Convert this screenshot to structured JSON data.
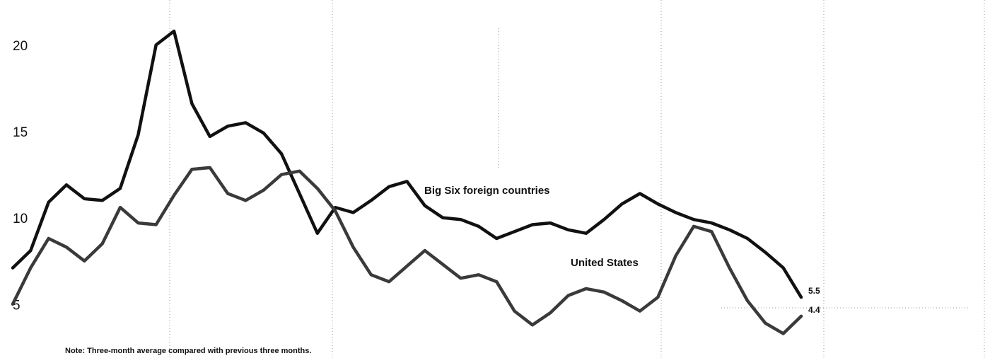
{
  "chart_data": {
    "type": "line",
    "note": "Note: Three-month average compared with previous three months.",
    "categories": [
      null,
      null,
      null,
      null,
      null,
      null,
      null,
      null,
      null,
      null,
      null,
      null,
      null,
      null,
      null,
      null,
      null,
      null,
      null,
      null,
      null,
      null,
      null,
      null,
      null,
      null,
      null,
      null,
      null,
      null,
      null,
      null,
      null,
      null,
      null,
      null,
      null,
      null,
      null,
      null,
      null,
      null,
      null,
      null,
      null
    ],
    "series": [
      {
        "name": "Big Six foreign countries",
        "color": "#111111",
        "values": [
          7.2,
          8.2,
          11.0,
          12.0,
          11.2,
          11.1,
          11.8,
          14.9,
          20.1,
          20.9,
          16.7,
          14.8,
          15.4,
          15.6,
          15.0,
          13.8,
          11.5,
          9.2,
          10.7,
          10.4,
          11.1,
          11.9,
          12.2,
          10.8,
          10.1,
          10.0,
          9.6,
          8.9,
          9.3,
          9.7,
          9.8,
          9.4,
          9.2,
          10.0,
          10.9,
          11.5,
          10.9,
          10.4,
          10.0,
          9.8,
          9.4,
          8.9,
          8.1,
          7.2,
          5.5
        ]
      },
      {
        "name": "United States",
        "color": "#3a3a3a",
        "values": [
          5.1,
          7.2,
          8.9,
          8.4,
          7.6,
          8.6,
          10.7,
          9.8,
          9.7,
          11.4,
          12.9,
          13.0,
          11.5,
          11.1,
          11.7,
          12.6,
          12.8,
          11.8,
          10.5,
          8.4,
          6.8,
          6.4,
          7.3,
          8.2,
          7.4,
          6.6,
          6.8,
          6.4,
          4.7,
          3.9,
          4.6,
          5.6,
          6.0,
          5.8,
          5.3,
          4.7,
          5.5,
          7.9,
          9.6,
          9.3,
          7.2,
          5.3,
          4.0,
          3.4,
          4.4
        ]
      }
    ],
    "ylim": [
      1.9,
      22.7
    ],
    "yticks": [
      5,
      10,
      15,
      20
    ]
  }
}
